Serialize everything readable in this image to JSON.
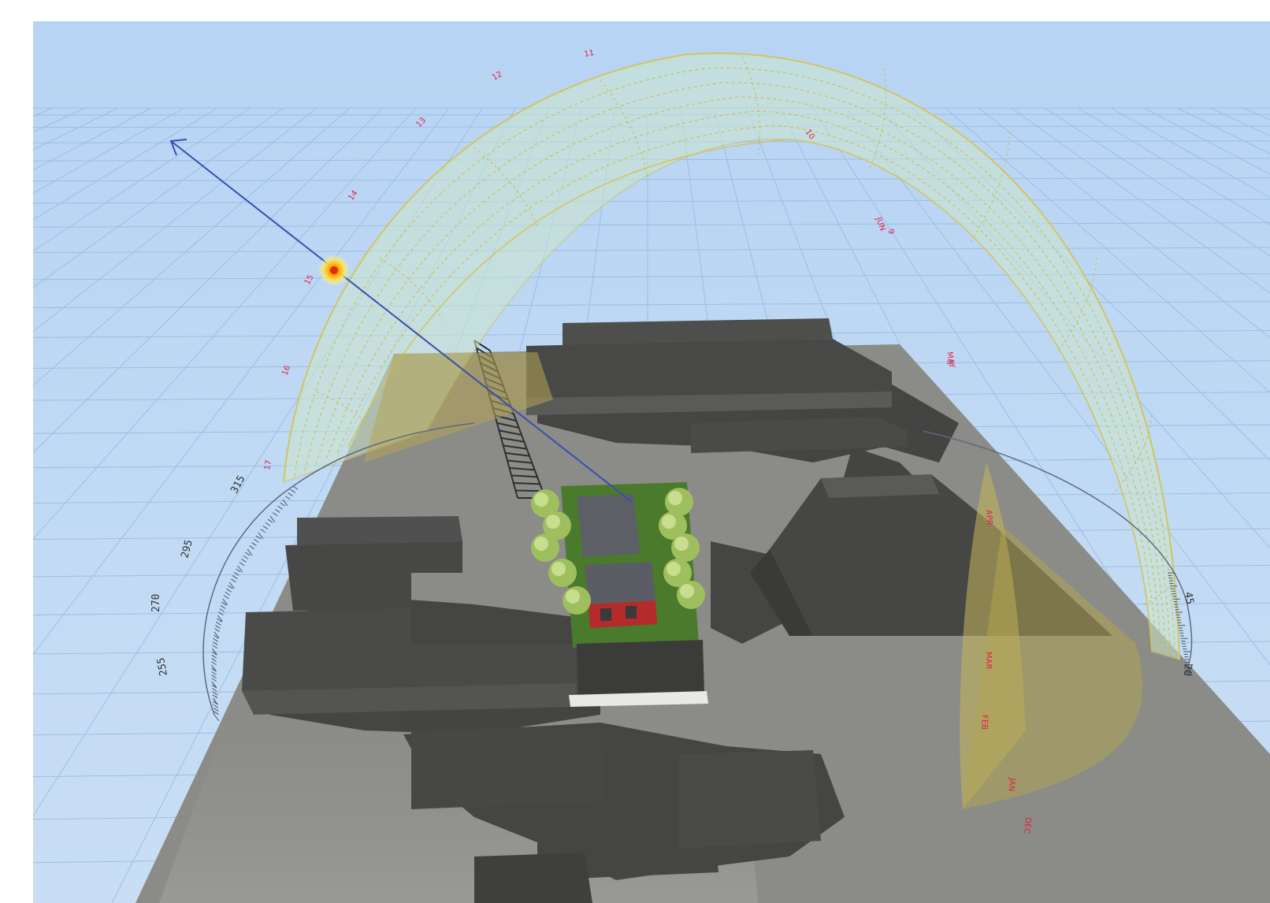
{
  "viewport": {
    "name": "3D sun study view"
  },
  "compass": {
    "labels": [
      {
        "text": "315",
        "rot": -62
      },
      {
        "text": "295",
        "rot": -75
      },
      {
        "text": "270",
        "rot": -90
      },
      {
        "text": "255",
        "rot": -100
      },
      {
        "text": "45",
        "rot": 80
      },
      {
        "text": "20",
        "rot": 95
      }
    ]
  },
  "sun_path": {
    "hour_labels": [
      "17",
      "16",
      "15",
      "14",
      "13",
      "12",
      "11",
      "10",
      "9",
      "8"
    ],
    "month_labels": [
      "JUN",
      "MAY",
      "APR",
      "MAR",
      "FEB",
      "JAN",
      "DEC"
    ]
  },
  "colors": {
    "sky": "#b9d6f2",
    "grid": "#8fb6e0",
    "ground": "#8a8a86",
    "building": "#4b4b4a",
    "shadow": "#3e3e3d",
    "dome": "#cfe6d2",
    "dome_edge": "#c9c266",
    "sun": "#ffd400",
    "sun_ray": "#3a4fae",
    "tree": "#a9c96a",
    "house_red": "#b52a2a"
  }
}
